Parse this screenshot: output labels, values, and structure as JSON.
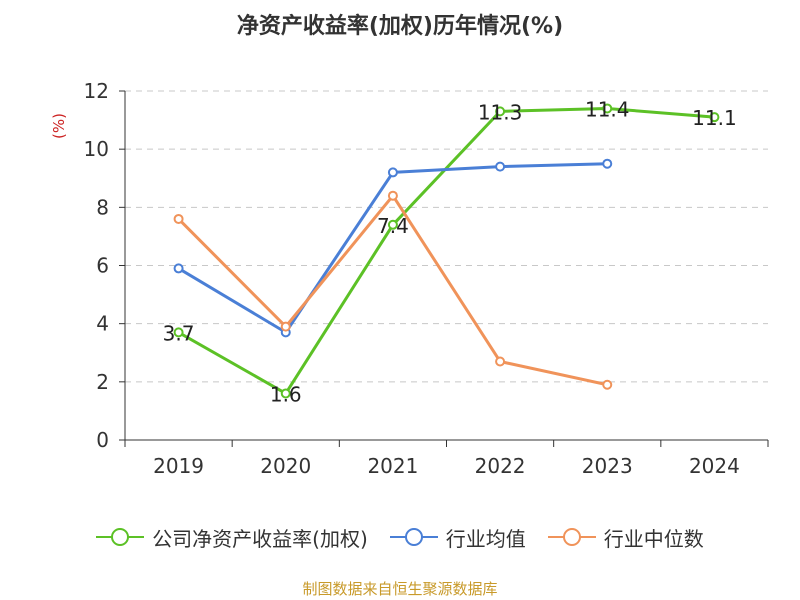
{
  "chart_data": {
    "type": "line",
    "title": "净资产收益率(加权)历年情况(%)",
    "ylabel": "(%)",
    "xlabel": "",
    "categories": [
      "2019",
      "2020",
      "2021",
      "2022",
      "2023",
      "2024"
    ],
    "ylim": [
      0,
      12
    ],
    "yticks": [
      0,
      2,
      4,
      6,
      8,
      10,
      12
    ],
    "grid": true,
    "legend_position": "bottom",
    "series": [
      {
        "name": "公司净资产收益率(加权)",
        "color": "#5cc126",
        "values": [
          3.7,
          1.6,
          7.4,
          11.3,
          11.4,
          11.1
        ],
        "labels": [
          "3.7",
          "1.6",
          "7.4",
          "11.3",
          "11.4",
          "11.1"
        ]
      },
      {
        "name": "行业均值",
        "color": "#4a7fd6",
        "values": [
          5.9,
          3.7,
          9.2,
          9.4,
          9.5,
          null
        ]
      },
      {
        "name": "行业中位数",
        "color": "#f0935a",
        "values": [
          7.6,
          3.9,
          8.4,
          2.7,
          1.9,
          null
        ]
      }
    ]
  },
  "source": "制图数据来自恒生聚源数据库"
}
